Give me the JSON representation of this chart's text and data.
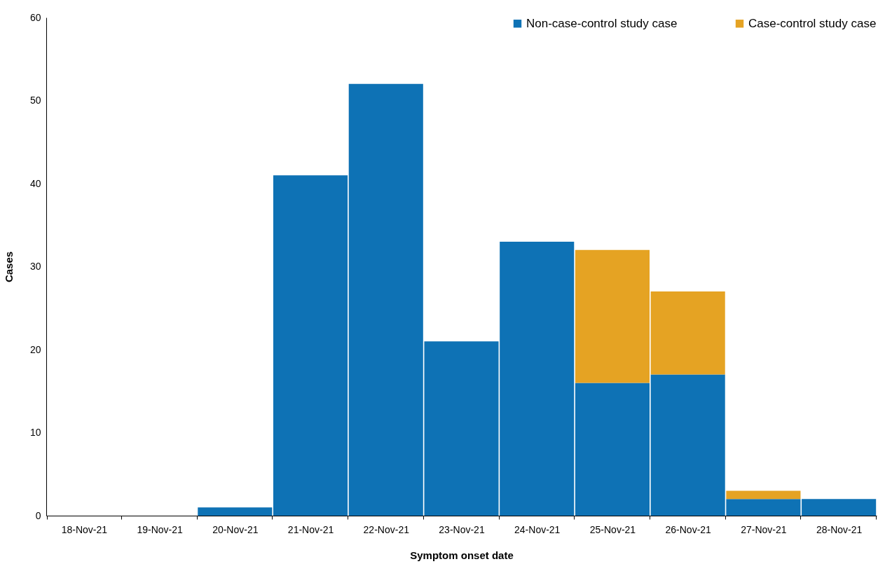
{
  "chart_data": {
    "type": "bar",
    "stacked": true,
    "xlabel": "Symptom onset date",
    "ylabel": "Cases",
    "categories": [
      "18-Nov-21",
      "19-Nov-21",
      "20-Nov-21",
      "21-Nov-21",
      "22-Nov-21",
      "23-Nov-21",
      "24-Nov-21",
      "25-Nov-21",
      "26-Nov-21",
      "27-Nov-21",
      "28-Nov-21"
    ],
    "series": [
      {
        "name": "Non-case-control study case",
        "color": "#0e72b5",
        "values": [
          0,
          0,
          1,
          41,
          52,
          21,
          33,
          16,
          17,
          2,
          2
        ]
      },
      {
        "name": "Case-control study case",
        "color": "#e5a323",
        "values": [
          0,
          0,
          0,
          0,
          0,
          0,
          0,
          16,
          10,
          1,
          0
        ]
      }
    ],
    "ylim": [
      0,
      60
    ],
    "yticks": [
      0,
      10,
      20,
      30,
      40,
      50,
      60
    ],
    "grid": false,
    "legend": "top right"
  }
}
